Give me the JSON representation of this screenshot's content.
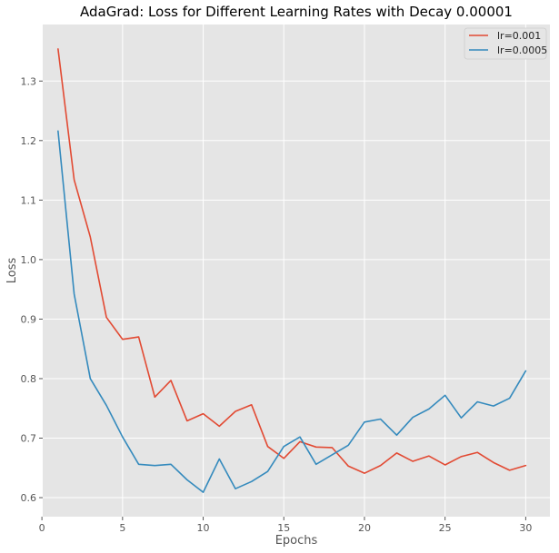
{
  "chart_data": {
    "type": "line",
    "title": "AdaGrad: Loss for Different Learning Rates with Decay 0.00001",
    "xlabel": "Epochs",
    "ylabel": "Loss",
    "xlim": [
      0.05,
      31.5
    ],
    "ylim": [
      0.568,
      1.395
    ],
    "xticks": [
      0,
      5,
      10,
      15,
      20,
      25,
      30
    ],
    "yticks": [
      0.6,
      0.7,
      0.8,
      0.9,
      1.0,
      1.1,
      1.2,
      1.3
    ],
    "ytick_labels": [
      "0.6",
      "0.7",
      "0.8",
      "0.9",
      "1.0",
      "1.1",
      "1.2",
      "1.3"
    ],
    "grid": true,
    "legend_position": "top-right",
    "x": [
      1,
      2,
      3,
      4,
      5,
      6,
      7,
      8,
      9,
      10,
      11,
      12,
      13,
      14,
      15,
      16,
      17,
      18,
      19,
      20,
      21,
      22,
      23,
      24,
      25,
      26,
      27,
      28,
      29,
      30
    ],
    "series": [
      {
        "name": "lr=0.001",
        "color": "#E24A33",
        "values": [
          1.354,
          1.134,
          1.038,
          0.903,
          0.866,
          0.87,
          0.769,
          0.797,
          0.729,
          0.741,
          0.72,
          0.745,
          0.756,
          0.686,
          0.666,
          0.694,
          0.685,
          0.684,
          0.653,
          0.641,
          0.654,
          0.675,
          0.661,
          0.67,
          0.655,
          0.669,
          0.676,
          0.659,
          0.646,
          0.654
        ]
      },
      {
        "name": "lr=0.0005",
        "color": "#348ABD",
        "values": [
          1.216,
          0.942,
          0.8,
          0.755,
          0.702,
          0.656,
          0.654,
          0.656,
          0.63,
          0.609,
          0.665,
          0.615,
          0.627,
          0.644,
          0.686,
          0.702,
          0.656,
          0.672,
          0.688,
          0.727,
          0.732,
          0.705,
          0.735,
          0.749,
          0.772,
          0.734,
          0.761,
          0.754,
          0.767,
          0.813
        ]
      }
    ]
  }
}
